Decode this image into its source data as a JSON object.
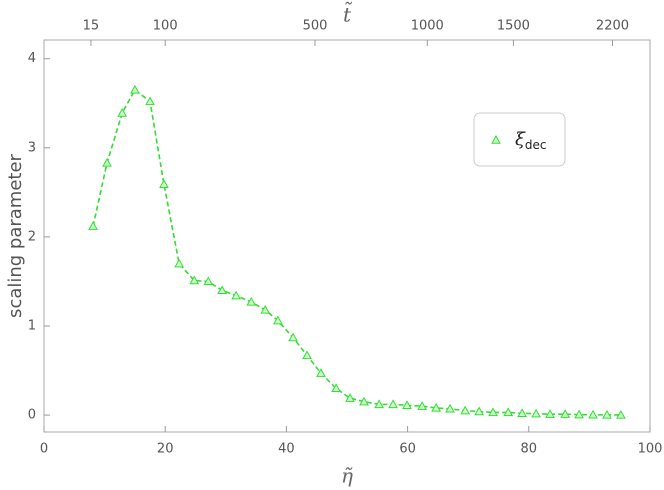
{
  "chart_data": {
    "type": "line",
    "x_label": "η̃",
    "x2_label": "t̃",
    "y_label": "scaling parameter",
    "x": [
      8.1,
      10.4,
      12.9,
      15.0,
      17.5,
      19.8,
      22.3,
      24.8,
      27.1,
      29.4,
      31.7,
      34.2,
      36.5,
      38.6,
      41.1,
      43.4,
      45.7,
      48.2,
      50.5,
      52.8,
      55.3,
      57.6,
      59.9,
      62.4,
      64.7,
      67.0,
      69.5,
      71.8,
      74.1,
      76.6,
      78.9,
      81.2,
      83.5,
      86.0,
      88.3,
      90.6,
      92.9,
      95.2
    ],
    "series": [
      {
        "name": "ξ",
        "name_subscript": "dec",
        "color": "#33dd33",
        "values": [
          2.12,
          2.83,
          3.39,
          3.65,
          3.52,
          2.59,
          1.7,
          1.51,
          1.5,
          1.4,
          1.34,
          1.27,
          1.18,
          1.06,
          0.87,
          0.67,
          0.47,
          0.3,
          0.19,
          0.15,
          0.12,
          0.12,
          0.11,
          0.1,
          0.08,
          0.07,
          0.05,
          0.04,
          0.03,
          0.03,
          0.02,
          0.015,
          0.01,
          0.01,
          0.005,
          0.003,
          0.002,
          0.001
        ]
      }
    ],
    "xlim": [
      0,
      100
    ],
    "xticks": [
      0,
      20,
      40,
      60,
      80,
      100
    ],
    "x2lim": [
      0,
      2500
    ],
    "x2scale": "sqrt",
    "x2ticks": [
      15,
      100,
      500,
      1000,
      1500,
      2200
    ],
    "ylim": [
      -0.19,
      4.21
    ],
    "yticks": [
      0,
      1,
      2,
      3,
      4
    ],
    "line_style": "dashed",
    "marker": "triangle",
    "legend": "upper right"
  }
}
